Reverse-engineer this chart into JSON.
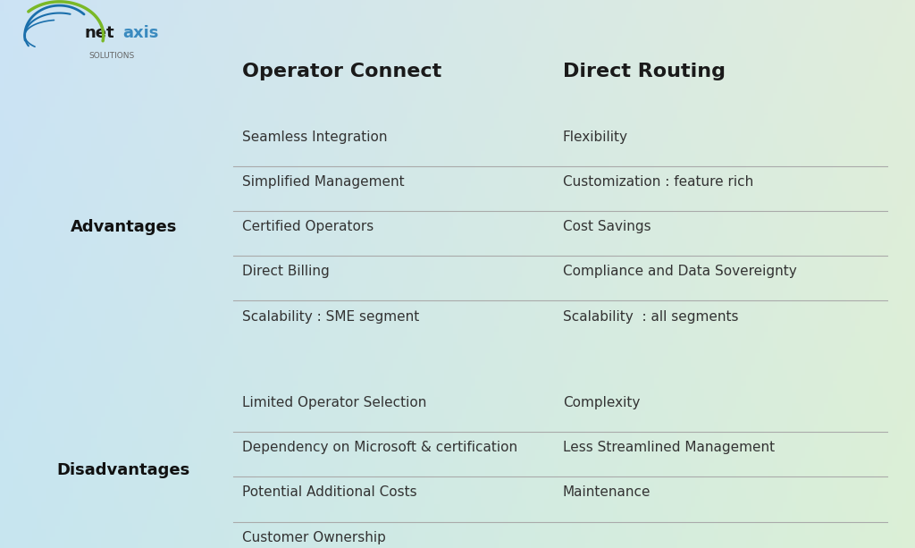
{
  "title_col1": "Operator Connect",
  "title_col2": "Direct Routing",
  "section1_label": "Advantages",
  "section2_label": "Disadvantages",
  "advantages_col1": [
    "Seamless Integration",
    "Simplified Management",
    "Certified Operators",
    "Direct Billing",
    "Scalability : SME segment"
  ],
  "advantages_col2": [
    "Flexibility",
    "Customization : feature rich",
    "Cost Savings",
    "Compliance and Data Sovereignty",
    "Scalability  : all segments"
  ],
  "disadvantages_col1": [
    "Limited Operator Selection",
    "Dependency on Microsoft & certification",
    "Potential Additional Costs",
    "Customer Ownership"
  ],
  "disadvantages_col2": [
    "Complexity",
    "Less Streamlined Management",
    "Maintenance",
    ""
  ],
  "text_color": "#333333",
  "header_color": "#1a1a1a",
  "line_color": "#aaaaaa",
  "label_color": "#111111",
  "figsize": [
    10.24,
    6.13
  ],
  "dpi": 100
}
